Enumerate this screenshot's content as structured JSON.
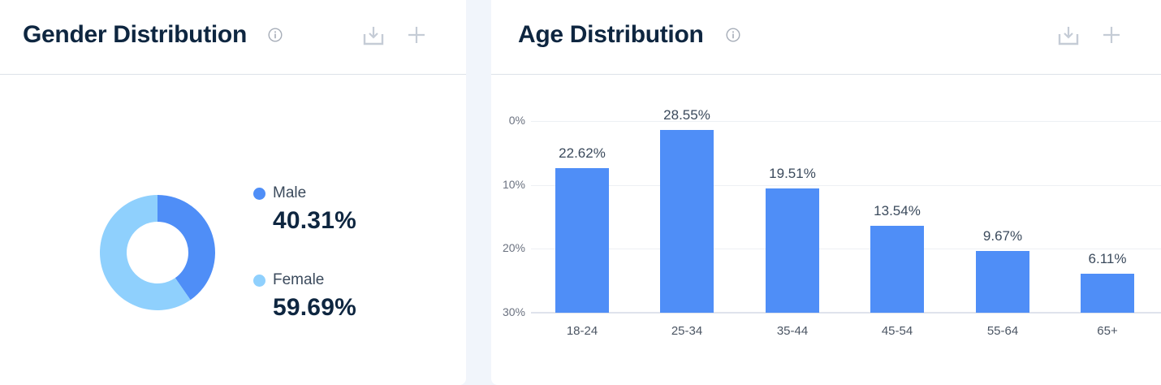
{
  "gender_panel": {
    "title": "Gender Distribution",
    "info_icon": "info-circle-icon",
    "download_icon": "download-icon",
    "add_icon": "plus-icon",
    "legend": [
      {
        "label": "Male",
        "value": "40.31%",
        "color": "#4f8ef7"
      },
      {
        "label": "Female",
        "value": "59.69%",
        "color": "#8fd0fd"
      }
    ]
  },
  "age_panel": {
    "title": "Age Distribution",
    "info_icon": "info-circle-icon",
    "download_icon": "download-icon",
    "add_icon": "plus-icon",
    "y_ticks": [
      "30%",
      "20%",
      "10%",
      "0%"
    ],
    "categories": [
      "18-24",
      "25-34",
      "35-44",
      "45-54",
      "55-64",
      "65+"
    ],
    "bar_labels": [
      "22.62%",
      "28.55%",
      "19.51%",
      "13.54%",
      "9.67%",
      "6.11%"
    ]
  },
  "colors": {
    "bar": "#4f8ef7",
    "male": "#4f8ef7",
    "female": "#8fd0fd",
    "title": "#0e2640",
    "icon": "#c5ccd6"
  },
  "chart_data": [
    {
      "type": "pie",
      "title": "Gender Distribution",
      "donut": true,
      "categories": [
        "Male",
        "Female"
      ],
      "values": [
        40.31,
        59.69
      ],
      "colors": [
        "#4f8ef7",
        "#8fd0fd"
      ],
      "legend_position": "right"
    },
    {
      "type": "bar",
      "title": "Age Distribution",
      "categories": [
        "18-24",
        "25-34",
        "35-44",
        "45-54",
        "55-64",
        "65+"
      ],
      "values": [
        22.62,
        28.55,
        19.51,
        13.54,
        9.67,
        6.11
      ],
      "xlabel": "",
      "ylabel": "",
      "ylim": [
        0,
        30
      ],
      "y_ticks": [
        0,
        10,
        20,
        30
      ],
      "grid": true,
      "data_labels": true,
      "color": "#4f8ef7"
    }
  ]
}
